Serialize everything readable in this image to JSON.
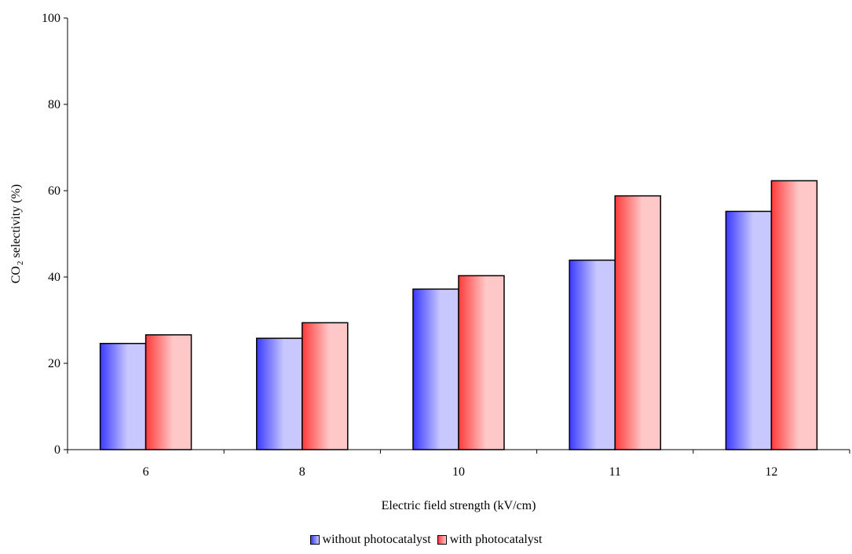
{
  "chart_data": {
    "type": "bar",
    "title": "",
    "xlabel": "Electric field strength (kV/cm)",
    "ylabel_main": "CO",
    "ylabel_sub": "2",
    "ylabel_rest": " selectivity (%)",
    "categories": [
      "6",
      "8",
      "10",
      "11",
      "12"
    ],
    "ylim": [
      0,
      100
    ],
    "yticks": [
      0,
      20,
      40,
      60,
      80,
      100
    ],
    "grid": false,
    "legend_position": "bottom",
    "series": [
      {
        "name": "without photocatalyst",
        "values": [
          24.6,
          25.8,
          37.2,
          43.9,
          55.2
        ],
        "color": "#3a3aff",
        "color_light": "#c8c8ff"
      },
      {
        "name": "with photocatalyst",
        "values": [
          26.6,
          29.4,
          40.3,
          58.8,
          62.3
        ],
        "color": "#ff3a3a",
        "color_light": "#ffc8c8"
      }
    ]
  }
}
